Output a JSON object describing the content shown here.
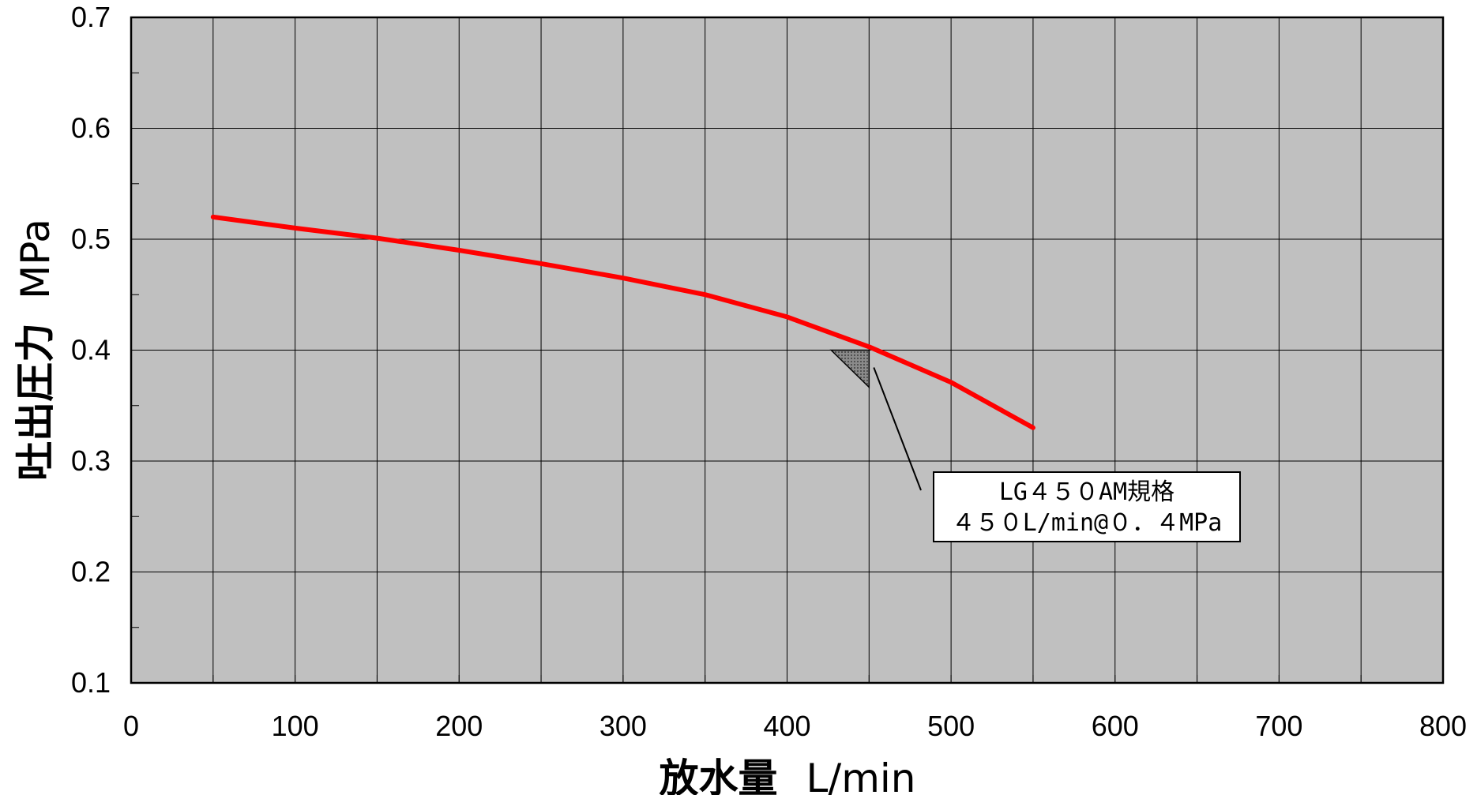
{
  "chart_data": {
    "type": "line",
    "x": [
      50,
      100,
      150,
      200,
      250,
      300,
      350,
      400,
      450,
      500,
      550
    ],
    "series": [
      {
        "values": [
          0.52,
          0.51,
          0.501,
          0.49,
          0.478,
          0.465,
          0.45,
          0.43,
          0.403,
          0.371,
          0.33
        ],
        "color": "#ff0000"
      }
    ],
    "xlabel": "放水量",
    "xlabel_unit": "L/min",
    "ylabel": "吐出圧力",
    "ylabel_unit": "MPa",
    "xlim": [
      0,
      800
    ],
    "ylim": [
      0.1,
      0.7
    ],
    "xticks": [
      "0",
      "100",
      "200",
      "300",
      "400",
      "500",
      "600",
      "700",
      "800"
    ],
    "yticks": [
      "0.1",
      "0.2",
      "0.3",
      "0.4",
      "0.5",
      "0.6",
      "0.7"
    ],
    "grid": true,
    "plot_background": "#c0c0c0",
    "annotation": {
      "line1": "LG４５０AM規格",
      "line2": "４５０L/min@０．４MPa",
      "point": {
        "x": 450,
        "y": 0.4
      }
    }
  }
}
